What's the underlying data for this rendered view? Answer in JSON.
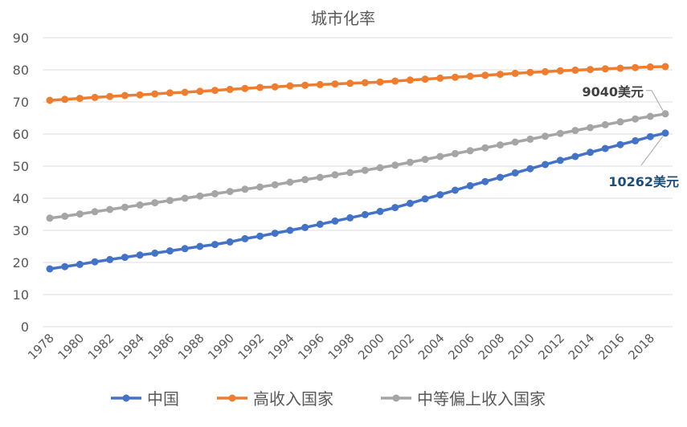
{
  "chart_data": {
    "type": "line",
    "title": "城市化率",
    "xlabel": "",
    "ylabel": "",
    "ylim": [
      0,
      90
    ],
    "yticks": [
      "0",
      "10",
      "20",
      "30",
      "40",
      "50",
      "60",
      "70",
      "80",
      "90"
    ],
    "x": [
      1978,
      1979,
      1980,
      1981,
      1982,
      1983,
      1984,
      1985,
      1986,
      1987,
      1988,
      1989,
      1990,
      1991,
      1992,
      1993,
      1994,
      1995,
      1996,
      1997,
      1998,
      1999,
      2000,
      2001,
      2002,
      2003,
      2004,
      2005,
      2006,
      2007,
      2008,
      2009,
      2010,
      2011,
      2012,
      2013,
      2014,
      2015,
      2016,
      2017,
      2018,
      2019
    ],
    "xtick_labels": [
      "1978",
      "1980",
      "1982",
      "1984",
      "1986",
      "1988",
      "1990",
      "1992",
      "1994",
      "1996",
      "1998",
      "2000",
      "2002",
      "2004",
      "2006",
      "2008",
      "2010",
      "2012",
      "2014",
      "2016",
      "2018"
    ],
    "grid": true,
    "legend_position": "bottom",
    "series": [
      {
        "name": "中国",
        "color": "#4472c4",
        "values": [
          18.0,
          18.7,
          19.4,
          20.2,
          20.9,
          21.6,
          22.3,
          22.9,
          23.6,
          24.3,
          25.0,
          25.6,
          26.4,
          27.4,
          28.2,
          29.1,
          30.0,
          30.9,
          31.9,
          32.9,
          33.9,
          34.9,
          35.9,
          37.1,
          38.4,
          39.8,
          41.1,
          42.5,
          43.9,
          45.2,
          46.5,
          47.9,
          49.2,
          50.5,
          51.8,
          53.0,
          54.3,
          55.5,
          56.7,
          57.9,
          59.2,
          60.3
        ]
      },
      {
        "name": "高收入国家",
        "color": "#ed7d31",
        "values": [
          70.5,
          70.8,
          71.1,
          71.4,
          71.7,
          72.0,
          72.2,
          72.5,
          72.8,
          73.0,
          73.3,
          73.6,
          73.9,
          74.2,
          74.5,
          74.7,
          75.0,
          75.2,
          75.4,
          75.6,
          75.8,
          76.0,
          76.2,
          76.5,
          76.8,
          77.1,
          77.4,
          77.7,
          78.0,
          78.3,
          78.6,
          78.9,
          79.2,
          79.4,
          79.7,
          79.9,
          80.1,
          80.3,
          80.5,
          80.7,
          80.9,
          81.0
        ]
      },
      {
        "name": "中等偏上收入国家",
        "color": "#a5a5a5",
        "values": [
          33.8,
          34.4,
          35.1,
          35.8,
          36.5,
          37.2,
          37.9,
          38.6,
          39.3,
          40.0,
          40.7,
          41.4,
          42.1,
          42.8,
          43.5,
          44.2,
          45.0,
          45.8,
          46.5,
          47.3,
          48.0,
          48.7,
          49.5,
          50.3,
          51.2,
          52.1,
          53.0,
          53.9,
          54.8,
          55.7,
          56.6,
          57.5,
          58.4,
          59.3,
          60.2,
          61.1,
          62.0,
          62.9,
          63.8,
          64.7,
          65.5,
          66.3
        ]
      }
    ],
    "annotations": [
      {
        "text": "9040美元",
        "series": "中等偏上收入国家",
        "x": 2019,
        "color": "#404040"
      },
      {
        "text": "10262美元",
        "series": "中国",
        "x": 2019,
        "color": "#1f4e79"
      }
    ]
  }
}
